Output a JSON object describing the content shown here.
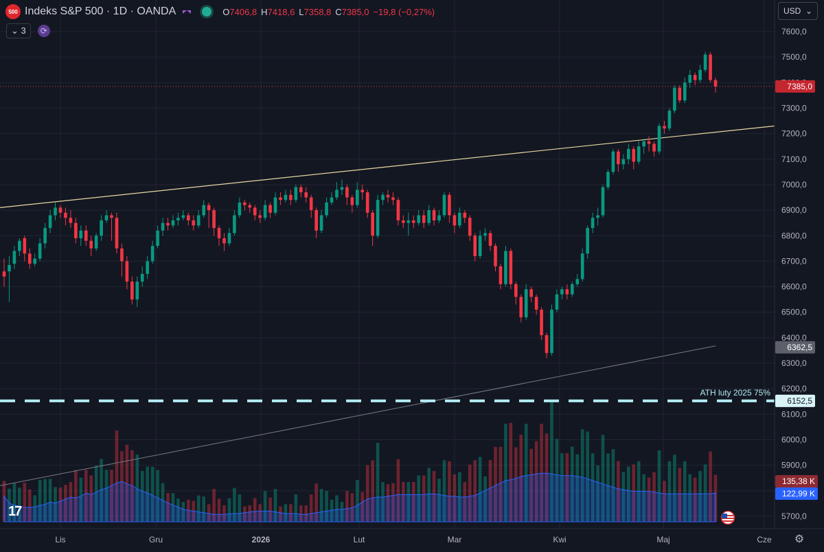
{
  "header": {
    "logo_text": "500",
    "title": "Indeks S&P 500 · 1D · OANDA",
    "o_label": "O",
    "o_val": "7406,8",
    "h_label": "H",
    "h_val": "7418,6",
    "l_label": "L",
    "l_val": "7358,8",
    "c_label": "C",
    "c_val": "7385,0",
    "change": "−19,8 (−0,27%)",
    "indicators_count": "3"
  },
  "currency": "USD",
  "colors": {
    "bg": "#131722",
    "up": "#089981",
    "down": "#f23645",
    "trendline": "#e8d9a0",
    "ath_line": "#b2ebf2",
    "vol_ma": "#2962ff",
    "ma_line": "#787b86"
  },
  "chart_data": {
    "type": "candlestick",
    "ylim": [
      5640,
      7650
    ],
    "y_ticks": [
      "7600,0",
      "7500,0",
      "7400,0",
      "7300,0",
      "7200,0",
      "7100,0",
      "7000,0",
      "6900,0",
      "6800,0",
      "6700,0",
      "6600,0",
      "6500,0",
      "6400,0",
      "6300,0",
      "6200,0",
      "6100,0",
      "6000,0",
      "5900,0",
      "5800,0",
      "5700,0"
    ],
    "x_ticks": [
      "Lis",
      "Gru",
      "2026",
      "Lut",
      "Mar",
      "Kwi",
      "Maj",
      "Cze"
    ],
    "last_price_label": "7385,0",
    "ma_label": "6362,5",
    "ath_label_value": "6152,5",
    "ath_annotation": "ATH luty 2025 75%",
    "volume_label": "135,38 K",
    "volume_ma_label": "122,99 K",
    "trendline": {
      "start": 6910,
      "end": 7230
    },
    "ma_line": {
      "start": 5820,
      "end": 6368
    },
    "candles": [
      [
        6660,
        6640,
        6710,
        6600
      ],
      [
        6660,
        6685,
        6720,
        6540
      ],
      [
        6690,
        6740,
        6760,
        6670
      ],
      [
        6740,
        6780,
        6790,
        6720
      ],
      [
        6790,
        6730,
        6800,
        6700
      ],
      [
        6730,
        6690,
        6750,
        6670
      ],
      [
        6690,
        6710,
        6730,
        6680
      ],
      [
        6710,
        6770,
        6790,
        6700
      ],
      [
        6770,
        6830,
        6850,
        6750
      ],
      [
        6830,
        6880,
        6900,
        6810
      ],
      [
        6880,
        6910,
        6930,
        6860
      ],
      [
        6910,
        6890,
        6920,
        6870
      ],
      [
        6890,
        6870,
        6910,
        6840
      ],
      [
        6870,
        6850,
        6900,
        6830
      ],
      [
        6850,
        6790,
        6870,
        6770
      ],
      [
        6790,
        6820,
        6840,
        6760
      ],
      [
        6820,
        6780,
        6840,
        6760
      ],
      [
        6780,
        6750,
        6800,
        6720
      ],
      [
        6750,
        6800,
        6810,
        6740
      ],
      [
        6800,
        6860,
        6880,
        6780
      ],
      [
        6860,
        6880,
        6900,
        6850
      ],
      [
        6880,
        6870,
        6890,
        6780
      ],
      [
        6870,
        6750,
        6890,
        6730
      ],
      [
        6750,
        6700,
        6770,
        6640
      ],
      [
        6700,
        6620,
        6720,
        6590
      ],
      [
        6620,
        6550,
        6640,
        6530
      ],
      [
        6550,
        6620,
        6640,
        6520
      ],
      [
        6620,
        6650,
        6680,
        6600
      ],
      [
        6650,
        6700,
        6720,
        6630
      ],
      [
        6700,
        6760,
        6780,
        6690
      ],
      [
        6760,
        6820,
        6840,
        6750
      ],
      [
        6820,
        6850,
        6870,
        6800
      ],
      [
        6850,
        6840,
        6870,
        6820
      ],
      [
        6840,
        6860,
        6880,
        6830
      ],
      [
        6860,
        6870,
        6890,
        6840
      ],
      [
        6870,
        6880,
        6900,
        6860
      ],
      [
        6880,
        6860,
        6890,
        6840
      ],
      [
        6860,
        6840,
        6880,
        6820
      ],
      [
        6840,
        6880,
        6900,
        6830
      ],
      [
        6880,
        6920,
        6940,
        6870
      ],
      [
        6920,
        6900,
        6930,
        6830
      ],
      [
        6900,
        6830,
        6910,
        6800
      ],
      [
        6830,
        6790,
        6840,
        6760
      ],
      [
        6790,
        6770,
        6810,
        6740
      ],
      [
        6770,
        6810,
        6830,
        6760
      ],
      [
        6810,
        6880,
        6900,
        6800
      ],
      [
        6880,
        6930,
        6950,
        6870
      ],
      [
        6930,
        6920,
        6940,
        6900
      ],
      [
        6920,
        6910,
        6930,
        6890
      ],
      [
        6910,
        6880,
        6920,
        6860
      ],
      [
        6880,
        6870,
        6900,
        6850
      ],
      [
        6870,
        6920,
        6940,
        6860
      ],
      [
        6920,
        6890,
        6930,
        6870
      ],
      [
        6890,
        6950,
        6970,
        6880
      ],
      [
        6950,
        6940,
        6970,
        6920
      ],
      [
        6940,
        6960,
        6980,
        6930
      ],
      [
        6960,
        6940,
        6980,
        6920
      ],
      [
        6940,
        6990,
        7000,
        6930
      ],
      [
        6990,
        6970,
        7000,
        6950
      ],
      [
        6970,
        6950,
        6990,
        6930
      ],
      [
        6950,
        6900,
        6960,
        6870
      ],
      [
        6900,
        6820,
        6910,
        6790
      ],
      [
        6820,
        6880,
        6900,
        6810
      ],
      [
        6880,
        6930,
        6950,
        6870
      ],
      [
        6930,
        6950,
        6970,
        6920
      ],
      [
        6950,
        6980,
        7010,
        6940
      ],
      [
        6980,
        6990,
        7020,
        6960
      ],
      [
        6990,
        6950,
        7000,
        6920
      ],
      [
        6950,
        6920,
        6960,
        6890
      ],
      [
        6920,
        6980,
        7010,
        6910
      ],
      [
        6980,
        6970,
        7000,
        6940
      ],
      [
        6970,
        6890,
        6980,
        6870
      ],
      [
        6890,
        6800,
        6900,
        6760
      ],
      [
        6800,
        6940,
        6960,
        6790
      ],
      [
        6940,
        6960,
        6970,
        6920
      ],
      [
        6960,
        6950,
        6980,
        6930
      ],
      [
        6950,
        6940,
        6970,
        6920
      ],
      [
        6940,
        6860,
        6950,
        6840
      ],
      [
        6860,
        6850,
        6880,
        6830
      ],
      [
        6850,
        6860,
        6890,
        6800
      ],
      [
        6860,
        6850,
        6880,
        6830
      ],
      [
        6850,
        6880,
        6900,
        6840
      ],
      [
        6880,
        6850,
        6900,
        6830
      ],
      [
        6850,
        6900,
        6920,
        6840
      ],
      [
        6900,
        6860,
        6910,
        6840
      ],
      [
        6860,
        6880,
        6900,
        6850
      ],
      [
        6880,
        6960,
        6970,
        6870
      ],
      [
        6960,
        6880,
        6970,
        6850
      ],
      [
        6880,
        6840,
        6890,
        6810
      ],
      [
        6840,
        6890,
        6910,
        6830
      ],
      [
        6890,
        6870,
        6900,
        6850
      ],
      [
        6870,
        6800,
        6880,
        6780
      ],
      [
        6800,
        6720,
        6810,
        6700
      ],
      [
        6720,
        6800,
        6820,
        6710
      ],
      [
        6800,
        6810,
        6830,
        6780
      ],
      [
        6810,
        6760,
        6820,
        6740
      ],
      [
        6760,
        6680,
        6770,
        6660
      ],
      [
        6680,
        6610,
        6690,
        6590
      ],
      [
        6610,
        6740,
        6760,
        6600
      ],
      [
        6740,
        6610,
        6750,
        6590
      ],
      [
        6610,
        6560,
        6620,
        6530
      ],
      [
        6560,
        6480,
        6570,
        6460
      ],
      [
        6480,
        6590,
        6610,
        6470
      ],
      [
        6590,
        6560,
        6600,
        6540
      ],
      [
        6560,
        6510,
        6570,
        6490
      ],
      [
        6510,
        6410,
        6520,
        6390
      ],
      [
        6410,
        6340,
        6420,
        6320
      ],
      [
        6340,
        6510,
        6530,
        6330
      ],
      [
        6510,
        6570,
        6590,
        6500
      ],
      [
        6570,
        6590,
        6600,
        6550
      ],
      [
        6590,
        6570,
        6610,
        6550
      ],
      [
        6570,
        6610,
        6620,
        6560
      ],
      [
        6610,
        6630,
        6650,
        6600
      ],
      [
        6630,
        6730,
        6750,
        6620
      ],
      [
        6730,
        6830,
        6840,
        6710
      ],
      [
        6830,
        6870,
        6890,
        6810
      ],
      [
        6870,
        6880,
        6910,
        6840
      ],
      [
        6880,
        6990,
        7000,
        6870
      ],
      [
        6990,
        7050,
        7060,
        6980
      ],
      [
        7050,
        7130,
        7140,
        7040
      ],
      [
        7130,
        7080,
        7140,
        7050
      ],
      [
        7080,
        7100,
        7120,
        7060
      ],
      [
        7100,
        7140,
        7160,
        7080
      ],
      [
        7140,
        7090,
        7150,
        7060
      ],
      [
        7090,
        7150,
        7170,
        7080
      ],
      [
        7150,
        7170,
        7180,
        7120
      ],
      [
        7170,
        7160,
        7190,
        7130
      ],
      [
        7160,
        7130,
        7170,
        7110
      ],
      [
        7130,
        7230,
        7240,
        7120
      ],
      [
        7230,
        7220,
        7250,
        7200
      ],
      [
        7220,
        7290,
        7300,
        7210
      ],
      [
        7290,
        7380,
        7390,
        7280
      ],
      [
        7380,
        7330,
        7390,
        7320
      ],
      [
        7330,
        7400,
        7420,
        7320
      ],
      [
        7400,
        7430,
        7450,
        7380
      ],
      [
        7430,
        7410,
        7440,
        7390
      ],
      [
        7410,
        7450,
        7470,
        7400
      ],
      [
        7450,
        7510,
        7520,
        7440
      ],
      [
        7510,
        7410,
        7520,
        7400
      ],
      [
        7410,
        7385,
        7420,
        7360
      ]
    ],
    "volumes": [
      0.62,
      0.45,
      0.4,
      0.38,
      0.35,
      0.35,
      0.36,
      0.4,
      0.42,
      0.48,
      0.45,
      0.5,
      0.55,
      0.6,
      0.58,
      0.62,
      0.7,
      0.66,
      0.72,
      0.78,
      0.82,
      0.88,
      0.94,
      0.98,
      0.92,
      0.88,
      0.8,
      0.74,
      0.7,
      0.64,
      0.58,
      0.52,
      0.46,
      0.4,
      0.36,
      0.3,
      0.28,
      0.26,
      0.24,
      0.22,
      0.2,
      0.18,
      0.18,
      0.18,
      0.19,
      0.2,
      0.2,
      0.22,
      0.24,
      0.25,
      0.26,
      0.26,
      0.26,
      0.24,
      0.22,
      0.2,
      0.2,
      0.2,
      0.18,
      0.18,
      0.2,
      0.22,
      0.24,
      0.26,
      0.28,
      0.3,
      0.3,
      0.32,
      0.34,
      0.4,
      0.48,
      0.55,
      0.58,
      0.6,
      0.6,
      0.62,
      0.64,
      0.66,
      0.66,
      0.66,
      0.66,
      0.66,
      0.66,
      0.68,
      0.68,
      0.66,
      0.64,
      0.62,
      0.62,
      0.6,
      0.6,
      0.62,
      0.64,
      0.7,
      0.76,
      0.82,
      0.88,
      0.94,
      1.0,
      1.02,
      1.05,
      1.1,
      1.12,
      1.14,
      1.16,
      1.18,
      1.18,
      1.16,
      1.14,
      1.12,
      1.12,
      1.12,
      1.1,
      1.08,
      1.04,
      1.0,
      0.96,
      0.92,
      0.88,
      0.84,
      0.8,
      0.78,
      0.76,
      0.74,
      0.74,
      0.74,
      0.74,
      0.72,
      0.7,
      0.68,
      0.68,
      0.68,
      0.68,
      0.68,
      0.68,
      0.68,
      0.68,
      0.68,
      0.68,
      0.7,
      0.7,
      0.7
    ]
  }
}
